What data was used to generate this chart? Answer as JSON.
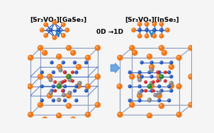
{
  "title_left": "[Sr₃VO₄][GaSe₃]",
  "title_right": "[Sr₃VO₄][InSe₃]",
  "center_text": "0D →1D",
  "bg": "#f5f5f5",
  "orange": "#f07818",
  "blue": "#2255bb",
  "red": "#cc2222",
  "green": "#228833",
  "gray": "#888888",
  "lc": "#8899bb",
  "arr": "#2288cc",
  "arrow_fill": "#5599dd"
}
